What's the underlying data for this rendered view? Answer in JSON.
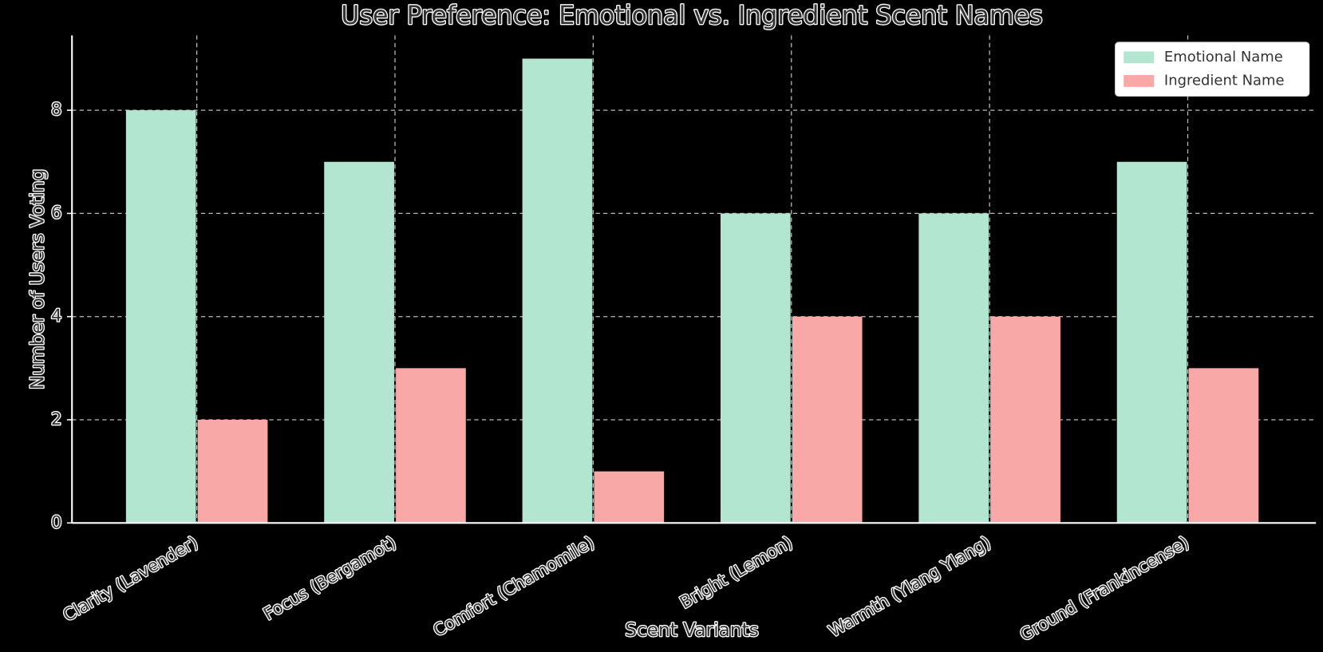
{
  "chart_data": {
    "type": "bar",
    "title": "User Preference: Emotional vs. Ingredient Scent Names",
    "x_label": "Scent Variants",
    "y_label": "Number of Users Voting",
    "categories": [
      "Clarity (Lavender)",
      "Focus (Bergamot)",
      "Comfort (Chamomile)",
      "Bright (Lemon)",
      "Warmth (Ylang Ylang)",
      "Ground (Frankincense)"
    ],
    "series": [
      {
        "name": "Emotional Name",
        "color": "#b3e6d1",
        "values": [
          8,
          7,
          9,
          6,
          6,
          7
        ]
      },
      {
        "name": "Ingredient Name",
        "color": "#f9a8a8",
        "values": [
          2,
          3,
          1,
          4,
          4,
          3
        ]
      }
    ],
    "ylim": [
      0,
      9.45
    ],
    "yticks": [
      0,
      2,
      4,
      6,
      8
    ],
    "grid": true,
    "legend": "upper-right"
  }
}
